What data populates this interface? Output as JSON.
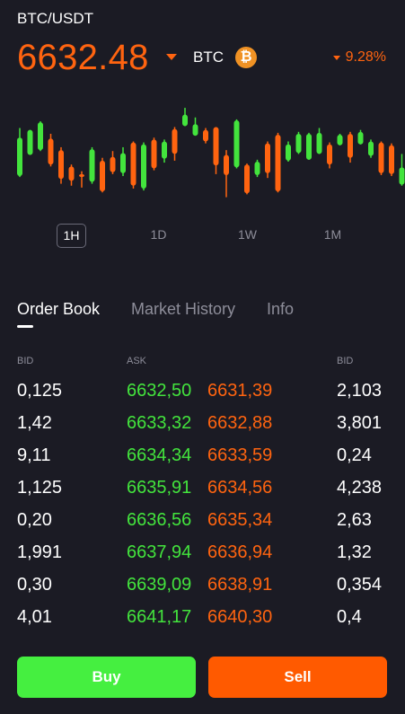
{
  "header": {
    "pair": "BTC/USDT",
    "price": "6632.48",
    "coin_label": "BTC",
    "coin_icon_symbol": "₿",
    "change": "9.28%",
    "change_direction": "down"
  },
  "colors": {
    "background": "#1b1b24",
    "up": "#43e43d",
    "down": "#ff6410",
    "muted": "#8d8d99",
    "coin": "#f09224"
  },
  "chart_data": {
    "type": "candlestick",
    "candles": [
      {
        "o": 0.28,
        "c": 0.68,
        "h": 0.78,
        "l": 0.27
      },
      {
        "o": 0.5,
        "c": 0.76,
        "h": 0.76,
        "l": 0.5
      },
      {
        "o": 0.55,
        "c": 0.84,
        "h": 0.85,
        "l": 0.54
      },
      {
        "o": 0.67,
        "c": 0.4,
        "h": 0.72,
        "l": 0.38
      },
      {
        "o": 0.55,
        "c": 0.25,
        "h": 0.58,
        "l": 0.2
      },
      {
        "o": 0.38,
        "c": 0.23,
        "h": 0.4,
        "l": 0.18
      },
      {
        "o": 0.3,
        "c": 0.27,
        "h": 0.33,
        "l": 0.16
      },
      {
        "o": 0.22,
        "c": 0.56,
        "h": 0.58,
        "l": 0.2
      },
      {
        "o": 0.44,
        "c": 0.12,
        "h": 0.47,
        "l": 0.11
      },
      {
        "o": 0.48,
        "c": 0.32,
        "h": 0.54,
        "l": 0.3
      },
      {
        "o": 0.31,
        "c": 0.52,
        "h": 0.58,
        "l": 0.28
      },
      {
        "o": 0.63,
        "c": 0.18,
        "h": 0.64,
        "l": 0.15
      },
      {
        "o": 0.15,
        "c": 0.61,
        "h": 0.63,
        "l": 0.13
      },
      {
        "o": 0.66,
        "c": 0.36,
        "h": 0.68,
        "l": 0.34
      },
      {
        "o": 0.46,
        "c": 0.64,
        "h": 0.66,
        "l": 0.42
      },
      {
        "o": 0.77,
        "c": 0.51,
        "h": 0.79,
        "l": 0.44
      },
      {
        "o": 0.8,
        "c": 0.92,
        "h": 0.99,
        "l": 0.8
      },
      {
        "o": 0.7,
        "c": 0.82,
        "h": 0.89,
        "l": 0.7
      },
      {
        "o": 0.76,
        "c": 0.64,
        "h": 0.78,
        "l": 0.62
      },
      {
        "o": 0.79,
        "c": 0.39,
        "h": 0.79,
        "l": 0.3
      },
      {
        "o": 0.5,
        "c": 0.29,
        "h": 0.55,
        "l": 0.06
      },
      {
        "o": 0.37,
        "c": 0.86,
        "h": 0.87,
        "l": 0.36
      },
      {
        "o": 0.4,
        "c": 0.1,
        "h": 0.41,
        "l": 0.09
      },
      {
        "o": 0.29,
        "c": 0.43,
        "h": 0.45,
        "l": 0.27
      },
      {
        "o": 0.62,
        "c": 0.31,
        "h": 0.64,
        "l": 0.26
      },
      {
        "o": 0.71,
        "c": 0.12,
        "h": 0.73,
        "l": 0.11
      },
      {
        "o": 0.44,
        "c": 0.61,
        "h": 0.64,
        "l": 0.43
      },
      {
        "o": 0.52,
        "c": 0.72,
        "h": 0.74,
        "l": 0.51
      },
      {
        "o": 0.45,
        "c": 0.72,
        "h": 0.73,
        "l": 0.45
      },
      {
        "o": 0.51,
        "c": 0.73,
        "h": 0.78,
        "l": 0.51
      },
      {
        "o": 0.61,
        "c": 0.4,
        "h": 0.63,
        "l": 0.36
      },
      {
        "o": 0.6,
        "c": 0.71,
        "h": 0.72,
        "l": 0.6
      },
      {
        "o": 0.72,
        "c": 0.47,
        "h": 0.74,
        "l": 0.42
      },
      {
        "o": 0.61,
        "c": 0.74,
        "h": 0.76,
        "l": 0.61
      },
      {
        "o": 0.49,
        "c": 0.64,
        "h": 0.66,
        "l": 0.47
      },
      {
        "o": 0.63,
        "c": 0.31,
        "h": 0.64,
        "l": 0.29
      },
      {
        "o": 0.6,
        "c": 0.3,
        "h": 0.62,
        "l": 0.28
      },
      {
        "o": 0.19,
        "c": 0.37,
        "h": 0.51,
        "l": 0.18
      }
    ]
  },
  "timeframes": [
    {
      "label": "1H",
      "active": true
    },
    {
      "label": "1D",
      "active": false
    },
    {
      "label": "1W",
      "active": false
    },
    {
      "label": "1M",
      "active": false
    }
  ],
  "tabs": [
    {
      "label": "Order Book",
      "active": true
    },
    {
      "label": "Market History",
      "active": false
    },
    {
      "label": "Info",
      "active": false
    }
  ],
  "order_book": {
    "headers": {
      "bid": "BID",
      "ask": "ASK",
      "bid2": "BID"
    },
    "rows": [
      {
        "bid": "0,125",
        "ask": "6632,50",
        "ask2": "6631,39",
        "bid2": "2,103"
      },
      {
        "bid": "1,42",
        "ask": "6633,32",
        "ask2": "6632,88",
        "bid2": "3,801"
      },
      {
        "bid": "9,11",
        "ask": "6634,34",
        "ask2": "6633,59",
        "bid2": "0,24"
      },
      {
        "bid": "1,125",
        "ask": "6635,91",
        "ask2": "6634,56",
        "bid2": "4,238"
      },
      {
        "bid": "0,20",
        "ask": "6636,56",
        "ask2": "6635,34",
        "bid2": "2,63"
      },
      {
        "bid": "1,991",
        "ask": "6637,94",
        "ask2": "6636,94",
        "bid2": "1,32"
      },
      {
        "bid": "0,30",
        "ask": "6639,09",
        "ask2": "6638,91",
        "bid2": "0,354"
      },
      {
        "bid": "4,01",
        "ask": "6641,17",
        "ask2": "6640,30",
        "bid2": "0,4"
      }
    ]
  },
  "actions": {
    "buy_label": "Buy",
    "sell_label": "Sell"
  }
}
